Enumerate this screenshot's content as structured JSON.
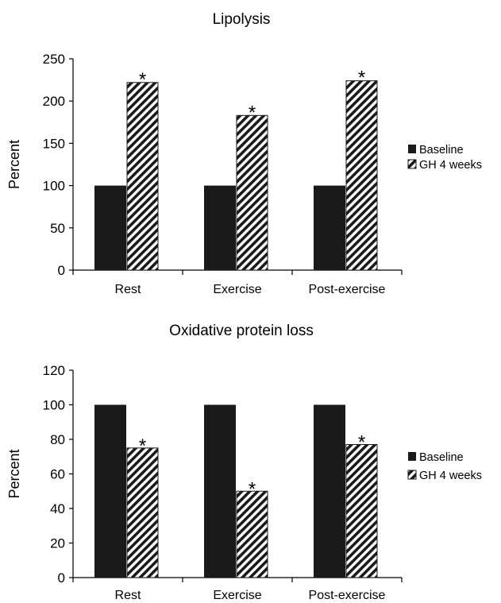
{
  "chart_data": [
    {
      "type": "bar",
      "title": "Lipolysis",
      "xlabel": "",
      "ylabel": "Percent",
      "ylim": [
        0,
        250
      ],
      "yticks": [
        0,
        50,
        100,
        150,
        200,
        250
      ],
      "categories": [
        "Rest",
        "Exercise",
        "Post-exercise"
      ],
      "series": [
        {
          "name": "Baseline",
          "values": [
            100,
            100,
            100
          ],
          "color": "#1a1a1a",
          "pattern": "solid"
        },
        {
          "name": "GH 4 weeks",
          "values": [
            222,
            183,
            224
          ],
          "color": "#1a1a1a",
          "pattern": "diagonal-hatch",
          "marker": [
            "*",
            "*",
            "*"
          ]
        }
      ],
      "legend": "right",
      "grid": false
    },
    {
      "type": "bar",
      "title": "Oxidative protein loss",
      "xlabel": "",
      "ylabel": "Percent",
      "ylim": [
        0,
        120
      ],
      "yticks": [
        0,
        20,
        40,
        60,
        80,
        100,
        120
      ],
      "categories": [
        "Rest",
        "Exercise",
        "Post-exercise"
      ],
      "series": [
        {
          "name": "Baseline",
          "values": [
            100,
            100,
            100
          ],
          "color": "#1a1a1a",
          "pattern": "solid"
        },
        {
          "name": "GH 4 weeks",
          "values": [
            75,
            50,
            77
          ],
          "color": "#1a1a1a",
          "pattern": "diagonal-hatch",
          "marker": [
            "*",
            "*",
            "*"
          ]
        }
      ],
      "legend": "right",
      "grid": false
    }
  ]
}
